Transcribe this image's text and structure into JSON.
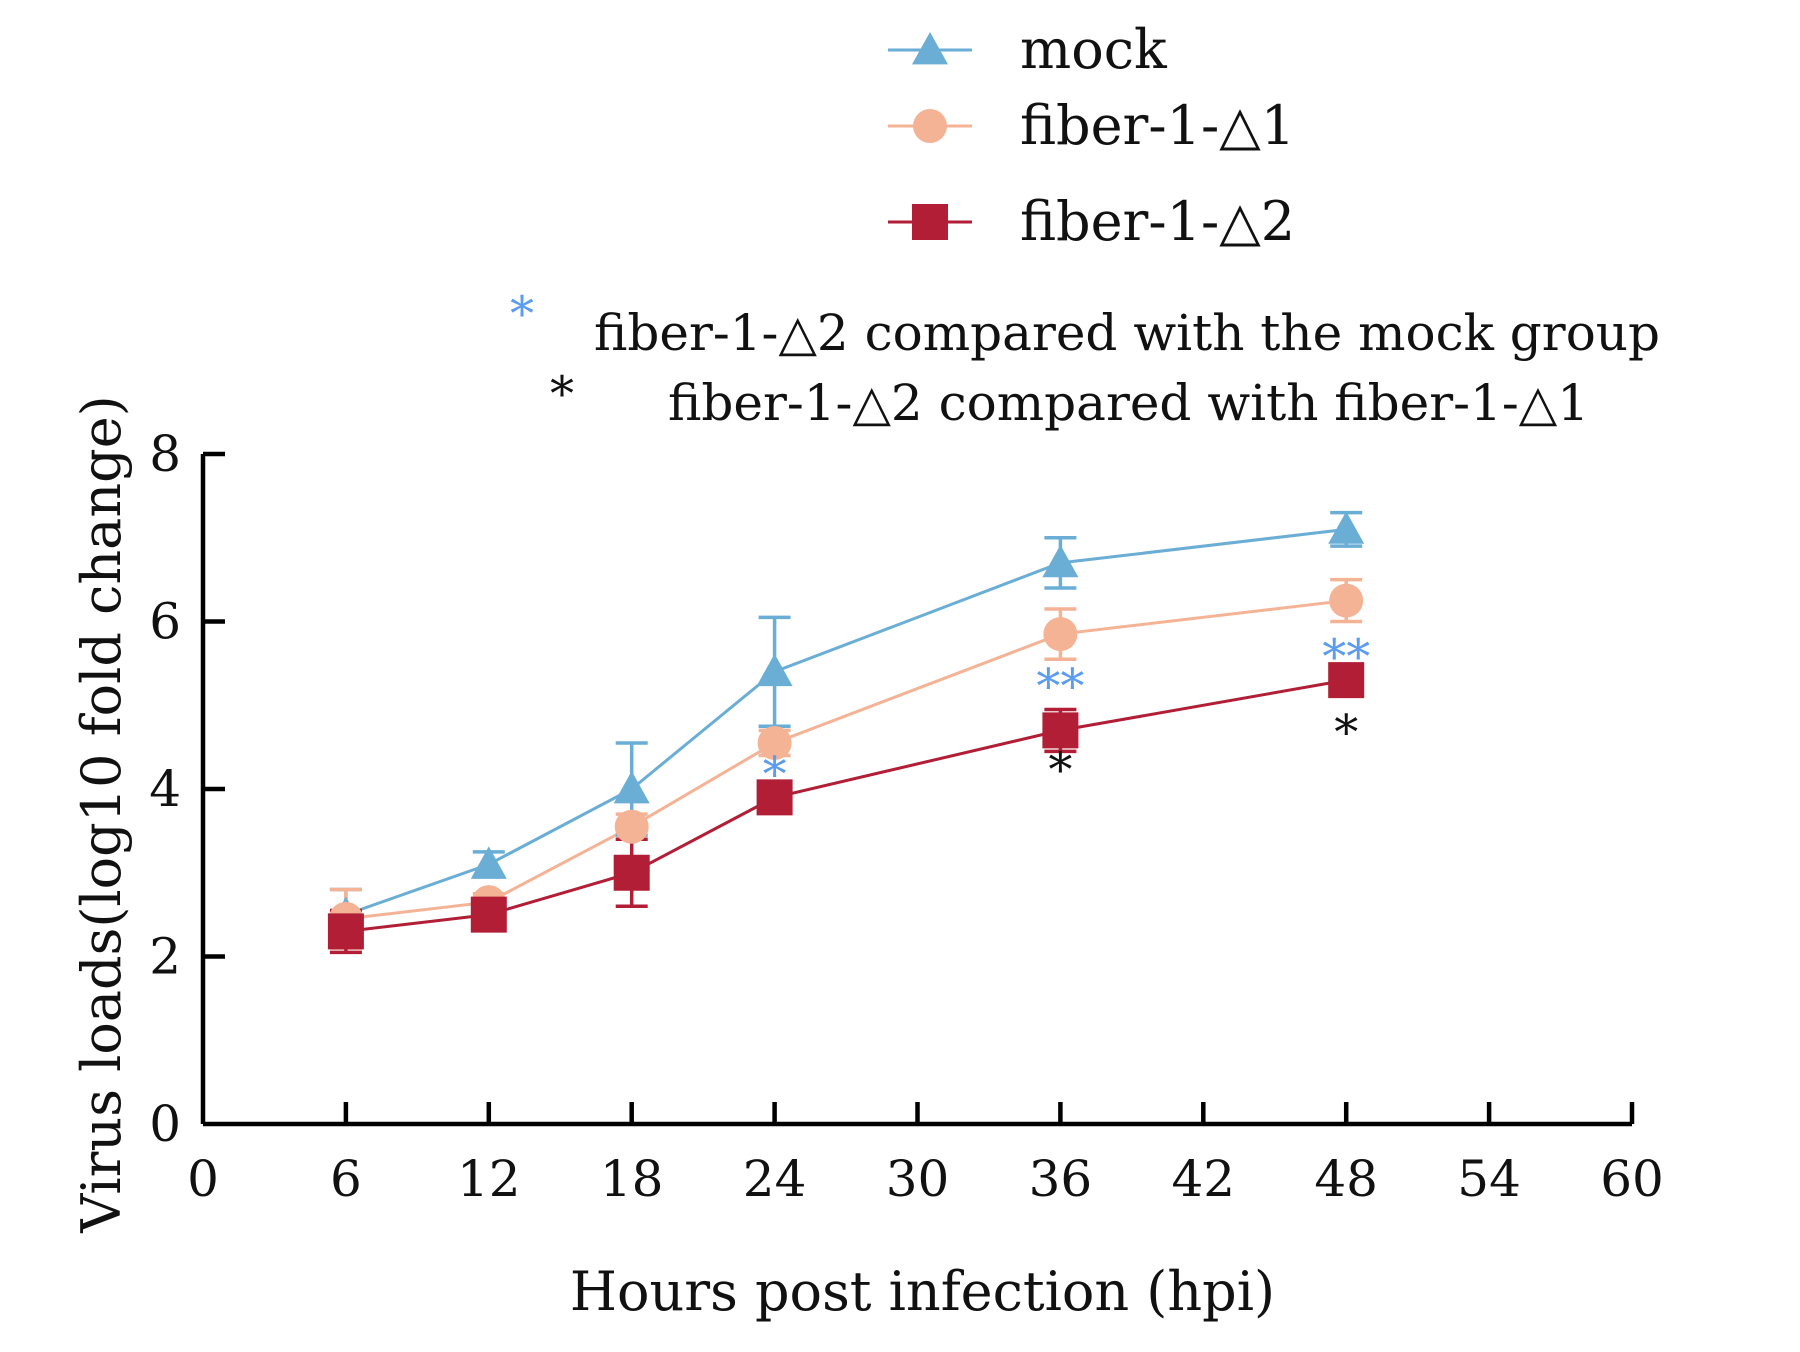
{
  "chart_data": {
    "type": "line",
    "title": "",
    "xlabel": "Hours post infection (hpi)",
    "ylabel": "Virus loads(log10 fold change)",
    "xlim": [
      0,
      60
    ],
    "ylim": [
      0,
      8
    ],
    "xticks": [
      0,
      6,
      12,
      18,
      24,
      30,
      36,
      42,
      48,
      54,
      60
    ],
    "yticks": [
      0,
      2,
      4,
      6,
      8
    ],
    "grid": false,
    "legend_position": "top-center",
    "series": [
      {
        "name": "mock",
        "color": "#6aaed6",
        "marker": "triangle",
        "x": [
          6,
          12,
          18,
          24,
          36,
          48
        ],
        "values": [
          2.5,
          3.1,
          4.0,
          5.4,
          6.7,
          7.1
        ],
        "error": [
          0.3,
          0.15,
          0.55,
          0.65,
          0.3,
          0.2
        ]
      },
      {
        "name": "fiber-1-△1",
        "color": "#f4b395",
        "marker": "circle",
        "x": [
          6,
          12,
          18,
          24,
          36,
          48
        ],
        "values": [
          2.45,
          2.65,
          3.55,
          4.55,
          5.85,
          6.25
        ],
        "error": [
          0.35,
          0.1,
          0.15,
          0.15,
          0.3,
          0.25
        ]
      },
      {
        "name": "fiber-1-△2",
        "color": "#b21e35",
        "marker": "square",
        "x": [
          6,
          12,
          18,
          24,
          36,
          48
        ],
        "values": [
          2.3,
          2.5,
          3.0,
          3.9,
          4.7,
          5.3
        ],
        "error": [
          0.25,
          0.1,
          0.4,
          0.1,
          0.25,
          0.1
        ]
      }
    ],
    "annotations": [
      {
        "x": 24,
        "text": "*",
        "color": "#5b9bf0",
        "y": 4.2
      },
      {
        "x": 36,
        "text": "**",
        "color": "#5b9bf0",
        "y": 5.25
      },
      {
        "x": 36,
        "text": "*",
        "color": "#111111",
        "y": 4.25
      },
      {
        "x": 48,
        "text": "**",
        "color": "#5b9bf0",
        "y": 5.6
      },
      {
        "x": 48,
        "text": "*",
        "color": "#111111",
        "y": 4.7
      }
    ],
    "significance_legend": [
      {
        "symbol": "*",
        "color": "#5b9bf0",
        "text": "fiber-1-△2 compared with the mock group"
      },
      {
        "symbol": "*",
        "color": "#111111",
        "text": "fiber-1-△2 compared with  fiber-1-△1"
      }
    ]
  }
}
